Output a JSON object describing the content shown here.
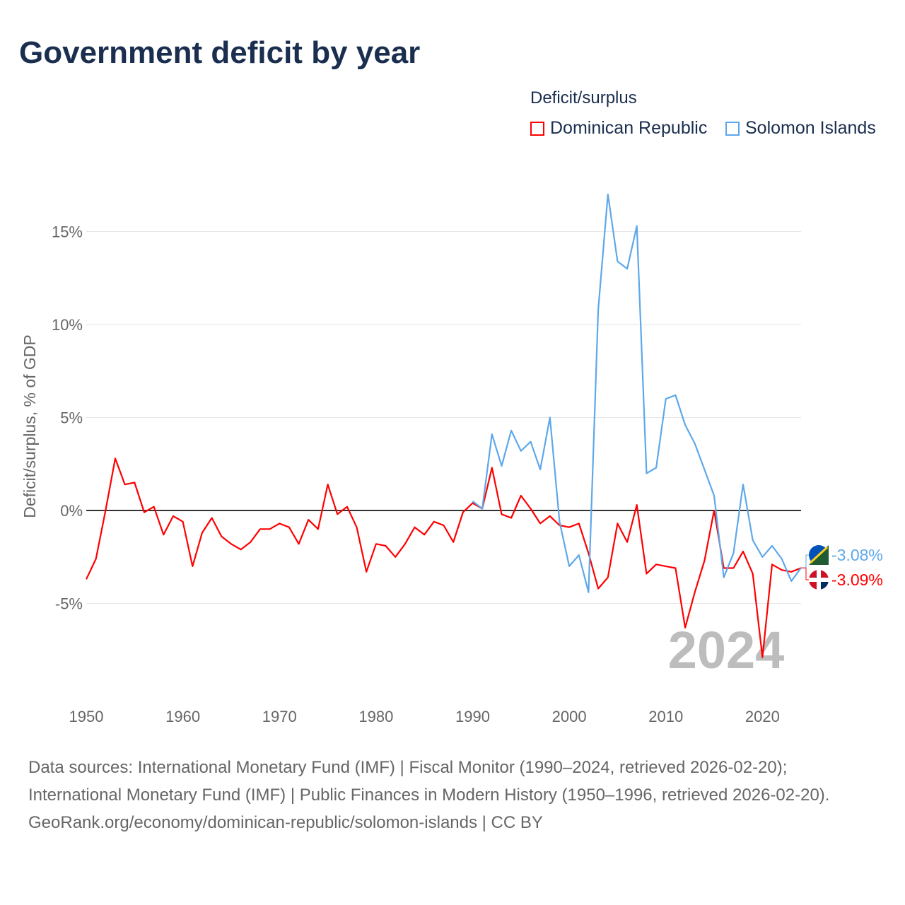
{
  "title": "Government deficit by year",
  "footer": {
    "sources": "Data sources: International Monetary Fund (IMF) | Fiscal Monitor (1990–2024, retrieved 2026-02-20); International Monetary Fund (IMF) | Public Finances in Modern History (1950–1996, retrieved 2026-02-20).",
    "credit": "GeoRank.org/economy/dominican-republic/solomon-islands | CC BY"
  },
  "chart_data": {
    "type": "line",
    "title": "Government deficit by year",
    "xlabel": "",
    "ylabel": "Deficit/surplus, % of GDP",
    "legend_title": "Deficit/surplus",
    "legend_position": "top-right",
    "year_watermark": "2024",
    "xlim": [
      1950,
      2024
    ],
    "ylim": [
      -10,
      18
    ],
    "xticks": [
      1950,
      1960,
      1970,
      1980,
      1990,
      2000,
      2010,
      2020
    ],
    "yticks": [
      {
        "v": 15,
        "label": "15%"
      },
      {
        "v": 10,
        "label": "10%"
      },
      {
        "v": 5,
        "label": "5%"
      },
      {
        "v": 0,
        "label": "0%"
      },
      {
        "v": -5,
        "label": "-5%"
      }
    ],
    "series": [
      {
        "name": "Dominican Republic",
        "color": "#ff0000",
        "end_label": "-3.09%",
        "start_year": 1950,
        "values": [
          -3.7,
          -2.6,
          0.0,
          2.8,
          1.4,
          1.5,
          -0.1,
          0.2,
          -1.3,
          -0.3,
          -0.6,
          -3.0,
          -1.2,
          -0.4,
          -1.4,
          -1.8,
          -2.1,
          -1.7,
          -1.0,
          -1.0,
          -0.7,
          -0.9,
          -1.8,
          -0.5,
          -1.0,
          1.4,
          -0.2,
          0.2,
          -0.9,
          -3.3,
          -1.8,
          -1.9,
          -2.5,
          -1.8,
          -0.9,
          -1.3,
          -0.6,
          -0.8,
          -1.7,
          -0.1,
          0.4,
          0.1,
          2.3,
          -0.2,
          -0.4,
          0.8,
          0.1,
          -0.7,
          -0.3,
          -0.8,
          -0.9,
          -0.7,
          -2.3,
          -4.2,
          -3.6,
          -0.7,
          -1.7,
          0.3,
          -3.4,
          -2.9,
          -3.0,
          -3.1,
          -6.3,
          -4.4,
          -2.7,
          0.0,
          -3.1,
          -3.1,
          -2.2,
          -3.4,
          -7.9,
          -2.9,
          -3.2,
          -3.3,
          -3.09
        ]
      },
      {
        "name": "Solomon Islands",
        "color": "#5ea8ea",
        "end_label": "-3.08%",
        "start_year": 1990,
        "values": [
          0.5,
          0.1,
          4.1,
          2.4,
          4.3,
          3.2,
          3.7,
          2.2,
          5.0,
          -0.6,
          -3.0,
          -2.4,
          -4.4,
          10.8,
          17.0,
          13.4,
          13.0,
          15.3,
          2.0,
          2.3,
          6.0,
          6.2,
          4.6,
          3.6,
          2.2,
          0.8,
          -3.6,
          -2.3,
          1.4,
          -1.6,
          -2.5,
          -1.9,
          -2.6,
          -3.8,
          -3.08
        ]
      }
    ]
  }
}
